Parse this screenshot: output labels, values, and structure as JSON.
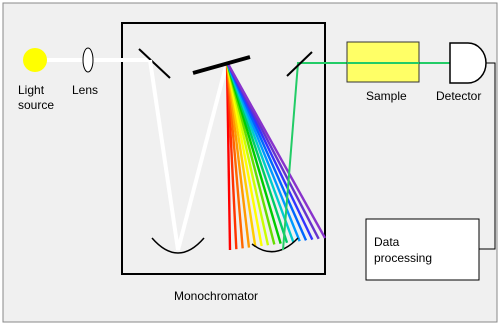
{
  "labels": {
    "light_source": [
      "Light",
      "source"
    ],
    "lens": "Lens",
    "sample": "Sample",
    "detector": "Detector",
    "monochromator": "Monochromator",
    "data_processing": [
      "Data",
      "processing"
    ]
  },
  "colors": {
    "background": "#f0f0f0",
    "light_source": "#ffff00",
    "sample": "#ffff66",
    "selected_beam": "#22cc66",
    "white_beam": "#ffffff",
    "spectrum": [
      "#ff0000",
      "#ff3300",
      "#ff6600",
      "#ff9900",
      "#ffcc00",
      "#ffff00",
      "#ccff00",
      "#66dd00",
      "#00cc00",
      "#00cc66",
      "#00cccc",
      "#0099ff",
      "#0066ff",
      "#3333ff",
      "#6633cc",
      "#8833cc"
    ]
  }
}
